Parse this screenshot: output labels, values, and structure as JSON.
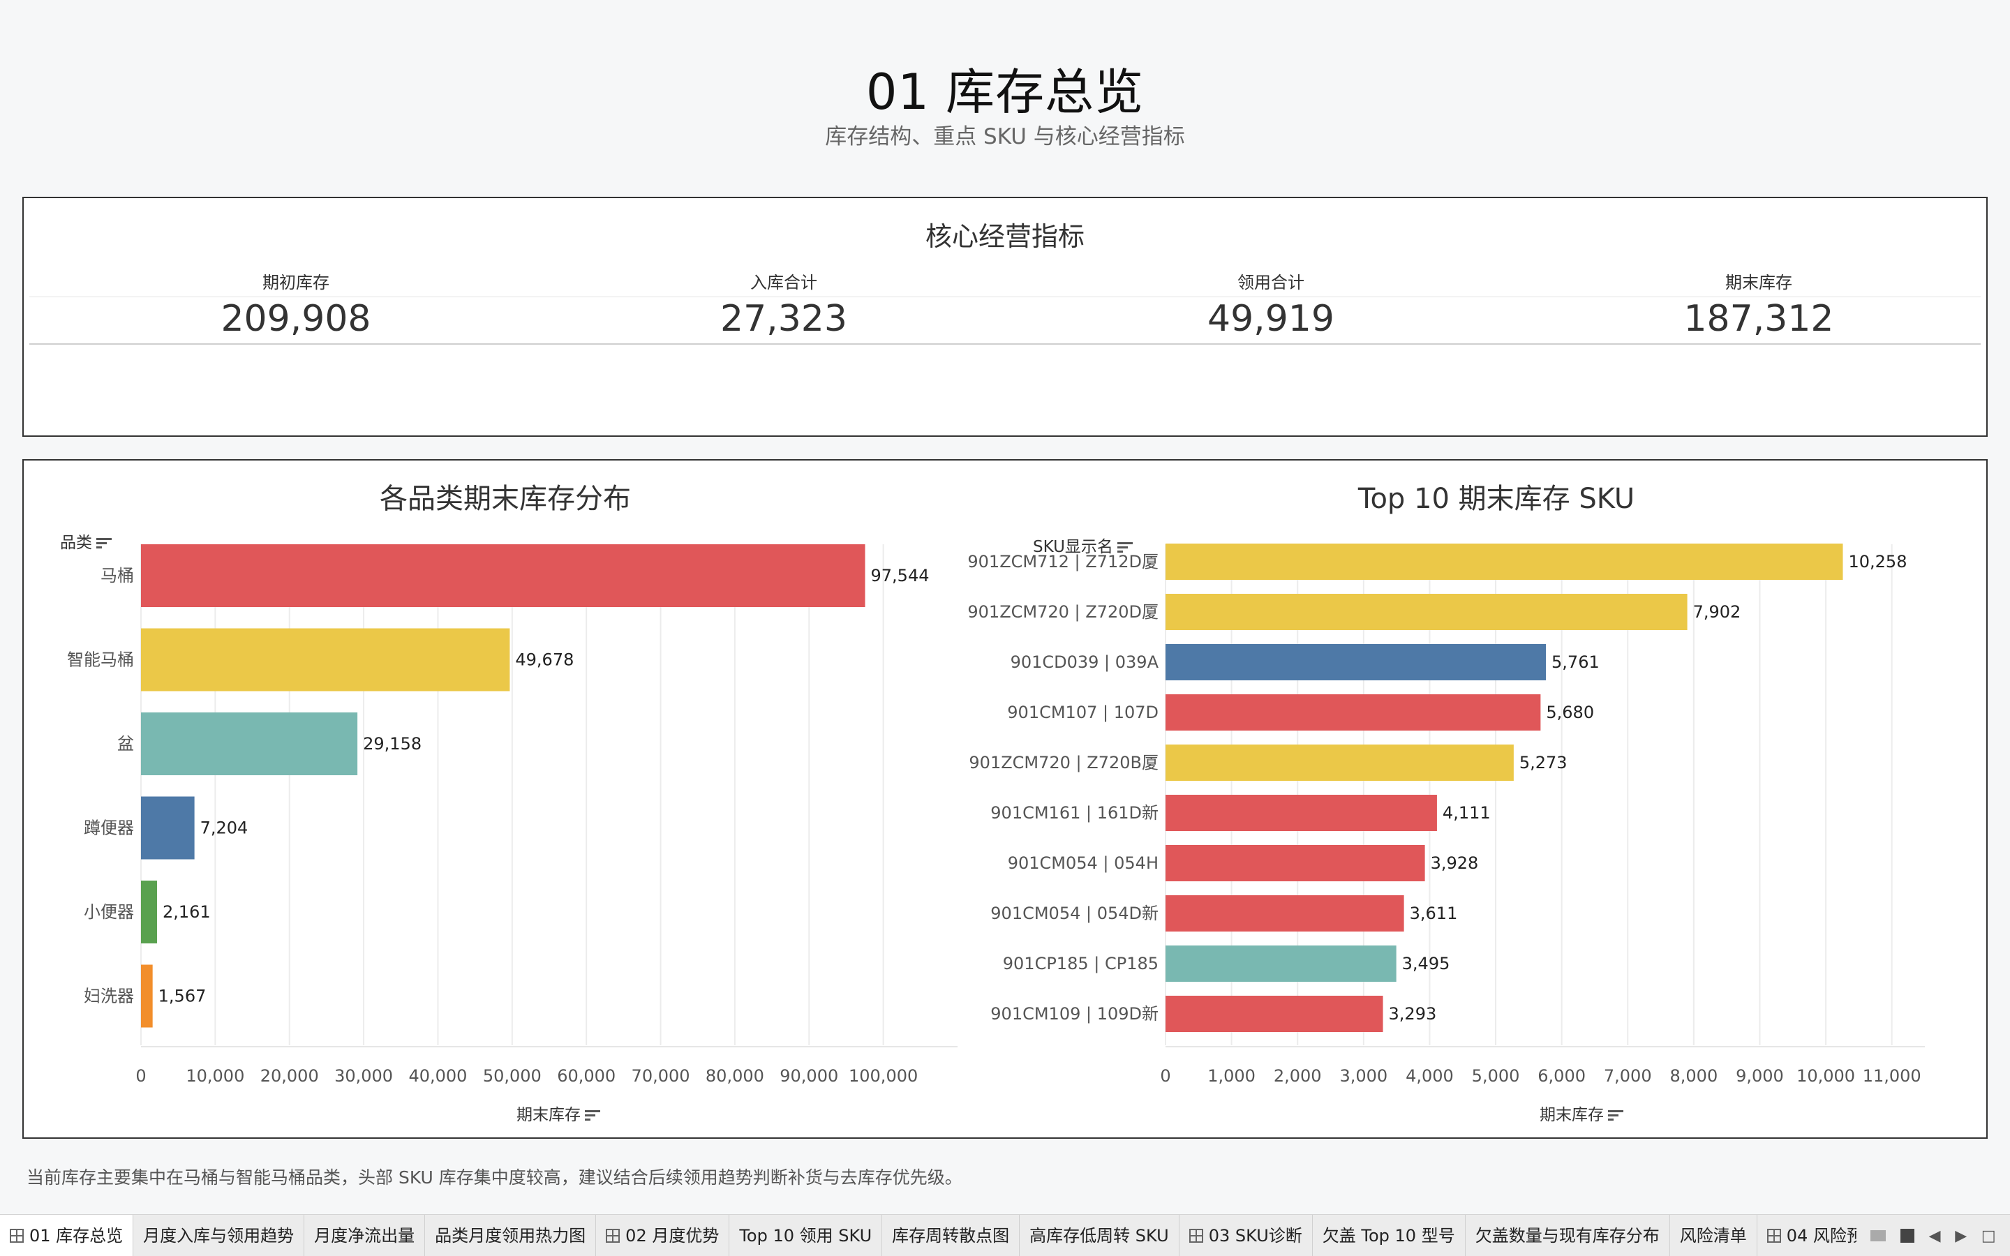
{
  "header": {
    "title": "01 库存总览",
    "subtitle": "库存结构、重点 SKU 与核心经营指标"
  },
  "kpi": {
    "title": "核心经营指标",
    "items": [
      {
        "label": "期初库存",
        "value": "209,908"
      },
      {
        "label": "入库合计",
        "value": "27,323"
      },
      {
        "label": "领用合计",
        "value": "49,919"
      },
      {
        "label": "期末库存",
        "value": "187,312"
      }
    ]
  },
  "colors": {
    "red": "#e05759",
    "yellow": "#ebc848",
    "teal": "#79b8b1",
    "blue": "#4e79a7",
    "green": "#59a14f",
    "orange": "#f28e2b"
  },
  "chart_data": [
    {
      "type": "bar",
      "orientation": "horizontal",
      "title": "各品类期末库存分布",
      "ylabel": "品类",
      "xlabel": "期末库存",
      "categories": [
        "马桶",
        "智能马桶",
        "盆",
        "蹲便器",
        "小便器",
        "妇洗器"
      ],
      "values": [
        97544,
        49678,
        29158,
        7204,
        2161,
        1567
      ],
      "value_labels": [
        "97,544",
        "49,678",
        "29,158",
        "7,204",
        "2,161",
        "1,567"
      ],
      "bar_colors": [
        "#e05759",
        "#ebc848",
        "#79b8b1",
        "#4e79a7",
        "#59a14f",
        "#f28e2b"
      ],
      "xlim": [
        0,
        110000
      ],
      "xticks": [
        0,
        10000,
        20000,
        30000,
        40000,
        50000,
        60000,
        70000,
        80000,
        90000,
        100000
      ],
      "xtick_labels": [
        "0",
        "10,000",
        "20,000",
        "30,000",
        "40,000",
        "50,000",
        "60,000",
        "70,000",
        "80,000",
        "90,000",
        "100,000"
      ],
      "grid": true
    },
    {
      "type": "bar",
      "orientation": "horizontal",
      "title": "Top 10 期末库存 SKU",
      "ylabel": "SKU显示名",
      "xlabel": "期末库存",
      "categories": [
        "901ZCM712 | Z712D厦",
        "901ZCM720 | Z720D厦",
        "901CD039 | 039A",
        "901CM107 | 107D",
        "901ZCM720 | Z720B厦",
        "901CM161 | 161D新",
        "901CM054 | 054H",
        "901CM054 | 054D新",
        "901CP185 | CP185",
        "901CM109 | 109D新"
      ],
      "values": [
        10258,
        7902,
        5761,
        5680,
        5273,
        4111,
        3928,
        3611,
        3495,
        3293
      ],
      "value_labels": [
        "10,258",
        "7,902",
        "5,761",
        "5,680",
        "5,273",
        "4,111",
        "3,928",
        "3,611",
        "3,495",
        "3,293"
      ],
      "bar_colors": [
        "#ebc848",
        "#ebc848",
        "#4e79a7",
        "#e05759",
        "#ebc848",
        "#e05759",
        "#e05759",
        "#e05759",
        "#79b8b1",
        "#e05759"
      ],
      "xlim": [
        0,
        11500
      ],
      "xticks": [
        0,
        1000,
        2000,
        3000,
        4000,
        5000,
        6000,
        7000,
        8000,
        9000,
        10000,
        11000
      ],
      "xtick_labels": [
        "0",
        "1,000",
        "2,000",
        "3,000",
        "4,000",
        "5,000",
        "6,000",
        "7,000",
        "8,000",
        "9,000",
        "10,000",
        "11,000"
      ],
      "grid": true
    }
  ],
  "footnote": "当前库存主要集中在马桶与智能马桶品类，头部 SKU 库存集中度较高，建议结合后续领用趋势判断补货与去库存优先级。",
  "tabs": [
    {
      "label": "01 库存总览",
      "grid_icon": true,
      "active": true
    },
    {
      "label": "月度入库与领用趋势",
      "grid_icon": false,
      "active": false
    },
    {
      "label": "月度净流出量",
      "grid_icon": false,
      "active": false
    },
    {
      "label": "品类月度领用热力图",
      "grid_icon": false,
      "active": false
    },
    {
      "label": "02 月度优势",
      "grid_icon": true,
      "active": false
    },
    {
      "label": "Top 10 领用 SKU",
      "grid_icon": false,
      "active": false
    },
    {
      "label": "库存周转散点图",
      "grid_icon": false,
      "active": false
    },
    {
      "label": "高库存低周转 SKU",
      "grid_icon": false,
      "active": false
    },
    {
      "label": "03 SKU诊断",
      "grid_icon": true,
      "active": false
    },
    {
      "label": "欠盖 Top 10 型号",
      "grid_icon": false,
      "active": false
    },
    {
      "label": "欠盖数量与现有库存分布",
      "grid_icon": false,
      "active": false
    },
    {
      "label": "风险清单",
      "grid_icon": false,
      "active": false
    },
    {
      "label": "04 风险预",
      "grid_icon": true,
      "active": false
    }
  ]
}
